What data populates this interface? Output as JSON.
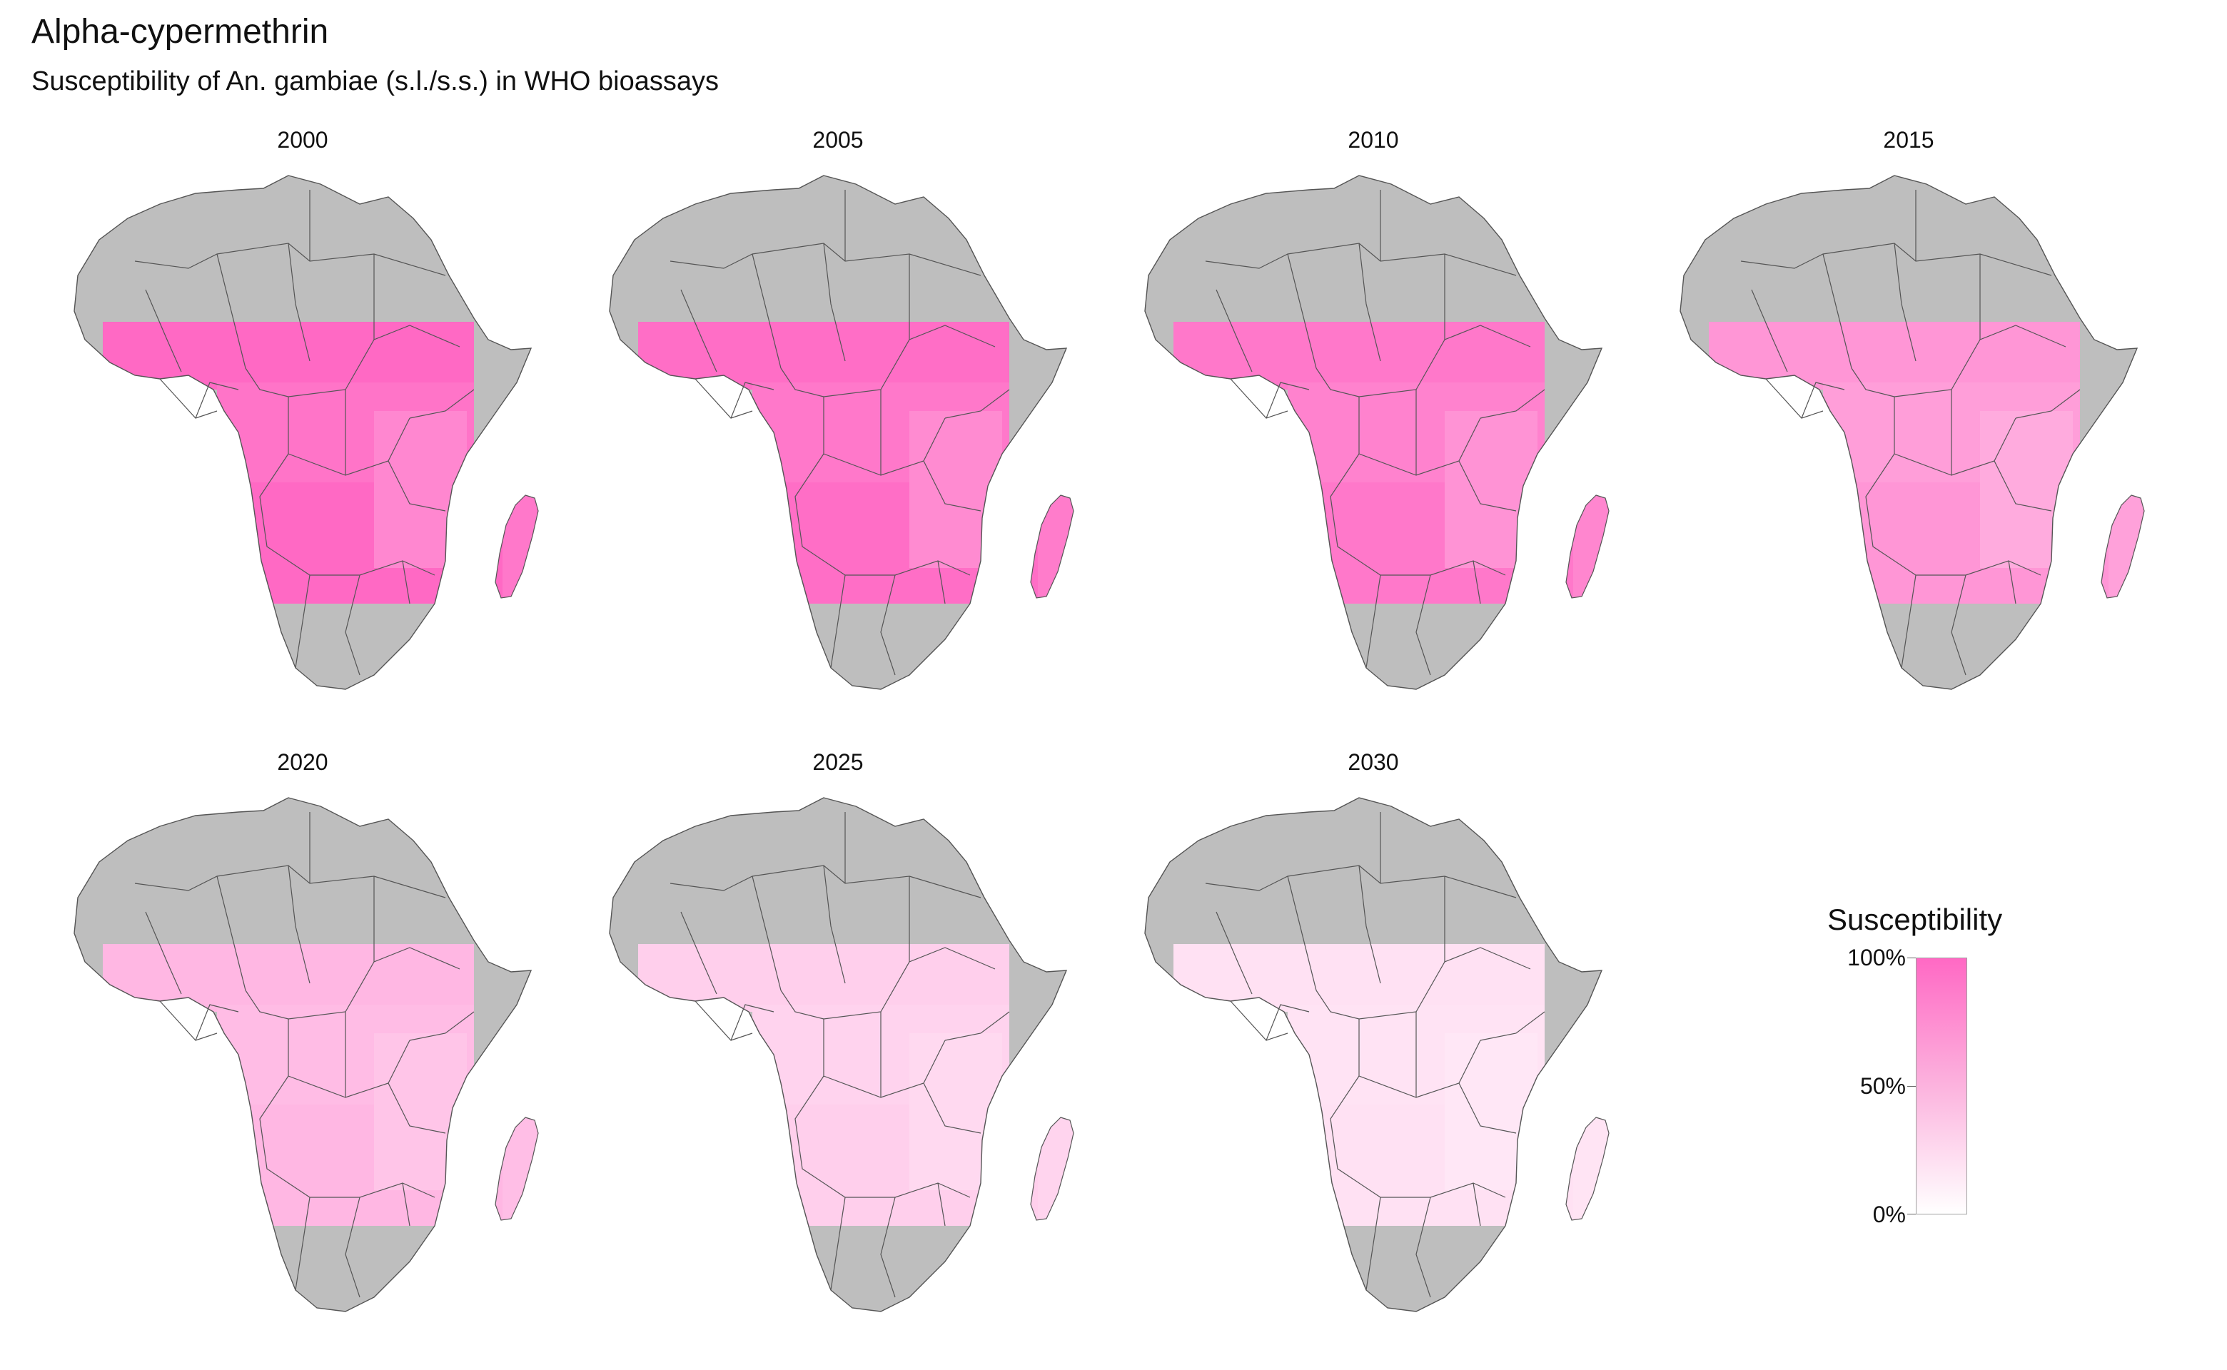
{
  "title": "Alpha-cypermethrin",
  "subtitle": "Susceptibility of An. gambiae (s.l./s.s.) in WHO bioassays",
  "panels": [
    {
      "year": "2000",
      "intensity": 1.0
    },
    {
      "year": "2005",
      "intensity": 0.97
    },
    {
      "year": "2010",
      "intensity": 0.9
    },
    {
      "year": "2015",
      "intensity": 0.7
    },
    {
      "year": "2020",
      "intensity": 0.48
    },
    {
      "year": "2025",
      "intensity": 0.32
    },
    {
      "year": "2030",
      "intensity": 0.2
    }
  ],
  "legend": {
    "title": "Susceptibility",
    "labels": [
      "100%",
      "50%",
      "0%"
    ],
    "color_high": "#ff69c4",
    "color_mid": "#fcb3de",
    "color_low": "#ffffff"
  },
  "colors": {
    "no_data_land": "#bebebe",
    "border": "#555555"
  }
}
